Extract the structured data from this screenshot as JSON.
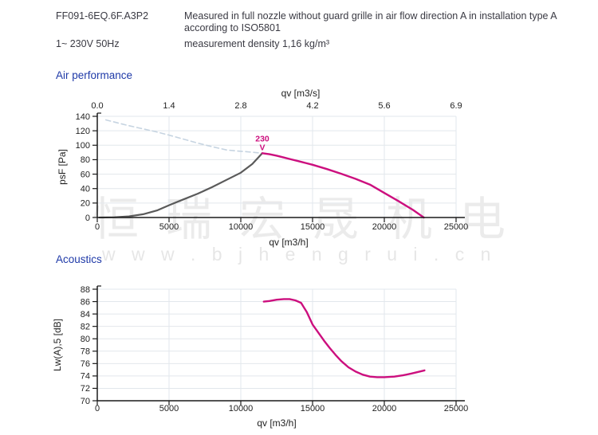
{
  "header": {
    "product_code": "FF091-6EQ.6F.A3P2",
    "measurement_note": "Measured in full nozzle without guard grille in air flow direction A in installation type A according to ISO5801",
    "power_supply": "1~ 230V 50Hz",
    "density_note": "measurement density 1,16 kg/m³"
  },
  "sections": {
    "air_performance_title": "Air performance",
    "acoustics_title": "Acoustics"
  },
  "watermark": {
    "cjk_text": "恒瑞宏晟机电",
    "url_text": "w w w . b j h e n g r u i . c n"
  },
  "colors": {
    "heading_blue": "#1f3aa8",
    "text_dark": "#3a3a43",
    "axis_dark": "#1a1a1a",
    "grid_light": "#e2e7ec",
    "curve_magenta": "#cc0f7e",
    "curve_gray": "#5a5a5a",
    "curve_dashed_blue": "#c6d4e1"
  },
  "chart_data": [
    {
      "type": "line",
      "id": "air-performance",
      "title": "Air performance",
      "xlabel": "qv [m3/h]",
      "xlabel_top": "qv [m3/s]",
      "ylabel": "psF [Pa]",
      "xlim": [
        0,
        25000
      ],
      "ylim": [
        0,
        140
      ],
      "grid": true,
      "x_ticks": [
        0,
        5000,
        10000,
        15000,
        20000,
        25000
      ],
      "x_ticks_top": [
        "0.0",
        "1.4",
        "2.8",
        "4.2",
        "5.6",
        "6.9"
      ],
      "y_ticks": [
        0,
        20,
        40,
        60,
        80,
        100,
        120,
        140
      ],
      "legend": "none",
      "series": [
        {
          "name": "system-limit-dashed",
          "color": "#c6d4e1",
          "width": 1.6,
          "dash": "6 4",
          "points": [
            [
              600,
              135
            ],
            [
              2000,
              128
            ],
            [
              3000,
              123.5
            ],
            [
              4000,
              119
            ],
            [
              5000,
              114
            ],
            [
              6000,
              108.5
            ],
            [
              7000,
              103
            ],
            [
              8000,
              98
            ],
            [
              9000,
              93.5
            ],
            [
              9600,
              92.3
            ],
            [
              10300,
              91.2
            ],
            [
              11000,
              90
            ],
            [
              11500,
              89
            ]
          ]
        },
        {
          "name": "fan-curve-rising",
          "color": "#5a5a5a",
          "width": 2.2,
          "dash": "",
          "points": [
            [
              150,
              0
            ],
            [
              1200,
              0.3
            ],
            [
              2200,
              1.5
            ],
            [
              3200,
              4.5
            ],
            [
              4200,
              10
            ],
            [
              5000,
              17
            ],
            [
              6000,
              25
            ],
            [
              7000,
              33
            ],
            [
              8000,
              42
            ],
            [
              9000,
              52
            ],
            [
              10000,
              62
            ],
            [
              10800,
              74
            ],
            [
              11500,
              89
            ]
          ]
        },
        {
          "name": "fan-curve-230V",
          "color": "#cc0f7e",
          "width": 2.4,
          "dash": "",
          "points": [
            [
              11500,
              89
            ],
            [
              12000,
              87.5
            ],
            [
              12500,
              85.5
            ],
            [
              13000,
              83
            ],
            [
              13500,
              80.5
            ],
            [
              14000,
              78
            ],
            [
              14500,
              75.5
            ],
            [
              15000,
              73
            ],
            [
              16000,
              67
            ],
            [
              17000,
              60.5
            ],
            [
              18000,
              53.5
            ],
            [
              19000,
              45.5
            ],
            [
              20000,
              34
            ],
            [
              21000,
              22.5
            ],
            [
              22000,
              10.5
            ],
            [
              22750,
              0
            ]
          ]
        }
      ],
      "annotations": [
        {
          "lines": [
            "230",
            "V"
          ],
          "x": 11500,
          "y": 89,
          "color": "#cc0f7e"
        }
      ]
    },
    {
      "type": "line",
      "id": "acoustics",
      "title": "Acoustics",
      "xlabel": "qv [m3/h]",
      "ylabel": "Lw(A),5 [dB]",
      "xlim": [
        0,
        25000
      ],
      "ylim": [
        70,
        88
      ],
      "grid": true,
      "x_ticks": [
        0,
        5000,
        10000,
        15000,
        20000,
        25000
      ],
      "y_ticks": [
        70,
        72,
        74,
        76,
        78,
        80,
        82,
        84,
        86,
        88
      ],
      "legend": "none",
      "series": [
        {
          "name": "sound-power-level-230V",
          "color": "#cc0f7e",
          "width": 2.4,
          "dash": "",
          "points": [
            [
              11600,
              86
            ],
            [
              12000,
              86.1
            ],
            [
              12500,
              86.3
            ],
            [
              13000,
              86.4
            ],
            [
              13400,
              86.4
            ],
            [
              13800,
              86.2
            ],
            [
              14200,
              85.8
            ],
            [
              14600,
              84.3
            ],
            [
              15000,
              82.3
            ],
            [
              15400,
              81
            ],
            [
              15800,
              79.7
            ],
            [
              16200,
              78.5
            ],
            [
              16600,
              77.4
            ],
            [
              17000,
              76.4
            ],
            [
              17500,
              75.4
            ],
            [
              18000,
              74.7
            ],
            [
              18500,
              74.2
            ],
            [
              19000,
              73.9
            ],
            [
              19500,
              73.8
            ],
            [
              20000,
              73.8
            ],
            [
              20700,
              73.9
            ],
            [
              21300,
              74.1
            ],
            [
              21900,
              74.4
            ],
            [
              22800,
              74.9
            ]
          ]
        }
      ],
      "annotations": []
    }
  ]
}
